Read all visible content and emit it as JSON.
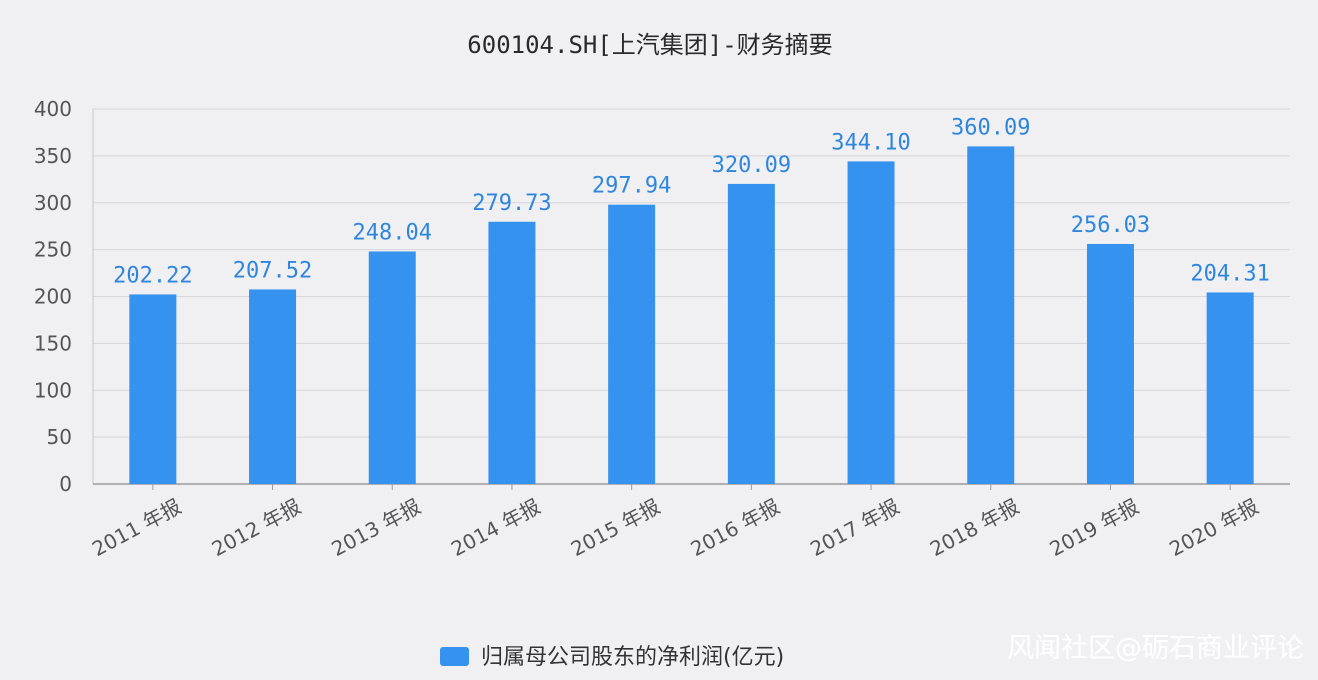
{
  "chart_data": {
    "type": "bar",
    "title": "600104.SH[上汽集团]-财务摘要",
    "categories": [
      "2011 年报",
      "2012 年报",
      "2013 年报",
      "2014 年报",
      "2015 年报",
      "2016 年报",
      "2017 年报",
      "2018 年报",
      "2019 年报",
      "2020 年报"
    ],
    "series": [
      {
        "name": "归属母公司股东的净利润(亿元)",
        "values": [
          202.22,
          207.52,
          248.04,
          279.73,
          297.94,
          320.09,
          344.1,
          360.09,
          256.03,
          204.31
        ],
        "labels": [
          "202.22",
          "207.52",
          "248.04",
          "279.73",
          "297.94",
          "320.09",
          "344.10",
          "360.09",
          "256.03",
          "204.31"
        ]
      }
    ],
    "yticks": [
      "0",
      "50",
      "100",
      "150",
      "200",
      "250",
      "300",
      "350",
      "400"
    ],
    "ylim": [
      0,
      400
    ],
    "grid": true,
    "legend_position": "bottom",
    "colors": {
      "bar": "#3592ee",
      "label": "#2f86de",
      "grid": "#d6d6dc"
    }
  },
  "watermark": "风闻社区@砺石商业评论"
}
